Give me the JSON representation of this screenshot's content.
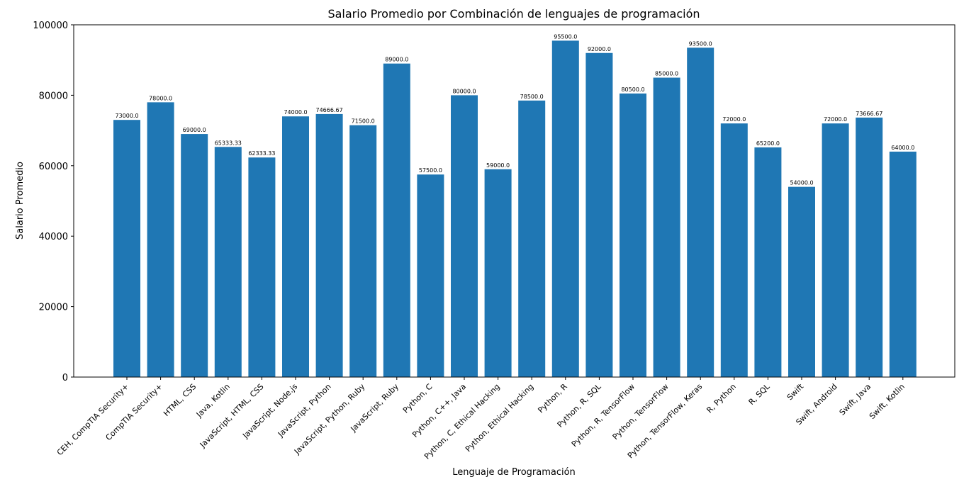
{
  "chart_data": {
    "type": "bar",
    "title": "Salario Promedio por Combinación de lenguajes de programación",
    "xlabel": "Lenguaje de Programación",
    "ylabel": "Salario Promedio",
    "ylim": [
      0,
      100000
    ],
    "yticks": [
      "0",
      "20000",
      "40000",
      "60000",
      "80000",
      "100000"
    ],
    "grid": false,
    "bar_color": "#1f77b4",
    "categories": [
      "CEH, CompTIA Security+",
      "CompTIA Security+",
      "HTML, CSS",
      "Java, Kotlin",
      "JavaScript, HTML, CSS",
      "JavaScript, Node.js",
      "JavaScript, Python",
      "JavaScript, Python, Ruby",
      "JavaScript, Ruby",
      "Python, C",
      "Python, C++, Java",
      "Python, C, Ethical Hacking",
      "Python, Ethical Hacking",
      "Python, R",
      "Python, R, SQL",
      "Python, R, TensorFlow",
      "Python, TensorFlow",
      "Python, TensorFlow, Keras",
      "R, Python",
      "R, SQL",
      "Swift",
      "Swift, Android",
      "Swift, Java",
      "Swift, Kotlin"
    ],
    "values": [
      73000,
      78000,
      69000,
      65333.33,
      62333.33,
      74000,
      74666.67,
      71500,
      89000,
      57500,
      80000,
      59000,
      78500,
      95500,
      92000,
      80500,
      85000,
      93500,
      72000,
      65200,
      54000,
      72000,
      73666.67,
      64000
    ],
    "value_labels": [
      "73000.0",
      "78000.0",
      "69000.0",
      "65333.33",
      "62333.33",
      "74000.0",
      "74666.67",
      "71500.0",
      "89000.0",
      "57500.0",
      "80000.0",
      "59000.0",
      "78500.0",
      "95500.0",
      "92000.0",
      "80500.0",
      "85000.0",
      "93500.0",
      "72000.0",
      "65200.0",
      "54000.0",
      "72000.0",
      "73666.67",
      "64000.0"
    ]
  }
}
